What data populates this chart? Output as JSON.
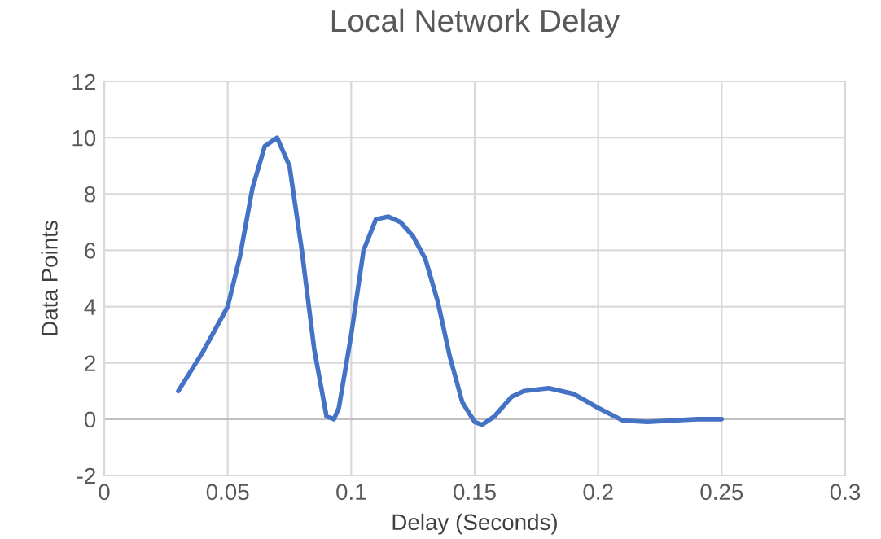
{
  "chart_data": {
    "type": "line",
    "title": "Local Network Delay",
    "xlabel": "Delay (Seconds)",
    "ylabel": "Data Points",
    "series": [
      {
        "color": "#4472c4",
        "x": [
          0.03,
          0.04,
          0.05,
          0.055,
          0.06,
          0.065,
          0.07,
          0.075,
          0.08,
          0.085,
          0.09,
          0.093,
          0.095,
          0.1,
          0.105,
          0.11,
          0.115,
          0.12,
          0.125,
          0.13,
          0.135,
          0.14,
          0.145,
          0.15,
          0.153,
          0.158,
          0.165,
          0.17,
          0.18,
          0.19,
          0.2,
          0.21,
          0.22,
          0.23,
          0.24,
          0.25
        ],
        "values": [
          1.0,
          2.4,
          4.0,
          5.8,
          8.2,
          9.7,
          10.0,
          9.0,
          6.0,
          2.5,
          0.1,
          0.0,
          0.4,
          3.0,
          6.0,
          7.1,
          7.2,
          7.0,
          6.5,
          5.7,
          4.2,
          2.2,
          0.6,
          -0.1,
          -0.2,
          0.1,
          0.8,
          1.0,
          1.1,
          0.9,
          0.4,
          -0.05,
          -0.1,
          -0.05,
          0.0,
          0.0
        ]
      }
    ],
    "xlim": [
      0,
      0.3
    ],
    "xticks": [
      0,
      0.05,
      0.1,
      0.15,
      0.2,
      0.25,
      0.3
    ],
    "ylim": [
      -2,
      12
    ],
    "yticks": [
      -2,
      0,
      2,
      4,
      6,
      8,
      10,
      12
    ],
    "grid": true,
    "marker": "none",
    "line_style": "solid",
    "legend": false
  }
}
